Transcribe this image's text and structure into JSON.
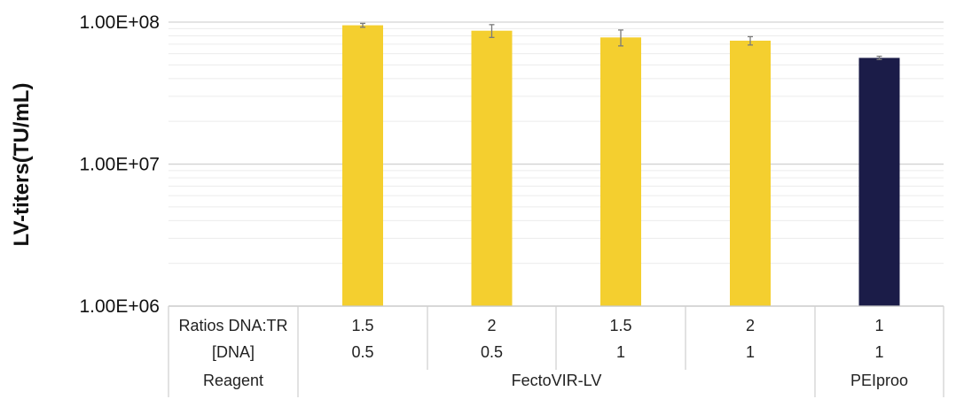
{
  "chart_data": {
    "type": "bar",
    "ylabel": "LV-titers(TU/mL)",
    "yscale": "log",
    "ylim": [
      1000000,
      100000000
    ],
    "yticks": [
      "1.00E+06",
      "1.00E+07",
      "1.00E+08"
    ],
    "grid": true,
    "values": [
      95000000,
      87000000,
      78000000,
      74000000,
      56000000
    ],
    "errors": [
      3000000,
      9000000,
      10000000,
      5000000,
      1500000
    ],
    "colors": [
      "#f4cf2f",
      "#f4cf2f",
      "#f4cf2f",
      "#f4cf2f",
      "#1b1c48"
    ],
    "table": {
      "rows": [
        {
          "header": "Ratios DNA:TR",
          "values": [
            "1.5",
            "2",
            "1.5",
            "2",
            "1"
          ]
        },
        {
          "header": "[DNA]",
          "values": [
            "0.5",
            "0.5",
            "1",
            "1",
            "1"
          ]
        }
      ],
      "reagent": {
        "header": "Reagent",
        "groups": [
          {
            "label": "FectoVIR-LV",
            "span": 4
          },
          {
            "label": "PEIproo",
            "span": 1
          }
        ]
      }
    }
  }
}
